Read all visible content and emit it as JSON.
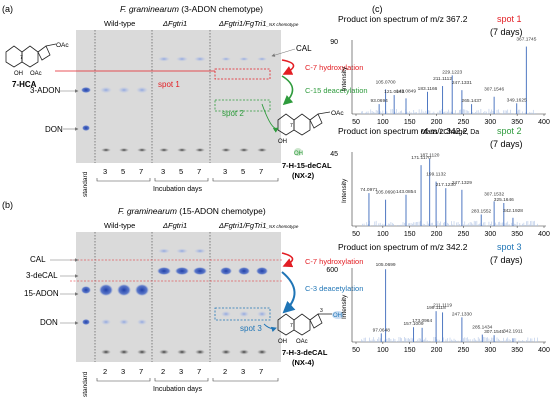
{
  "colors": {
    "red": "#e31e24",
    "green": "#2e9b3c",
    "blue": "#1f75b6",
    "spec": "#6f93c8",
    "plate": "#dadada",
    "plateDark": "#c9c9c9"
  },
  "panel_a": {
    "label": "(a)",
    "title_species": "F. graminearum",
    "title_rest": " (3-ADON chemotype)",
    "col_labels": [
      "Wild-type",
      "ΔFgtri1",
      "ΔFgtri1/FgTri1"
    ],
    "col_sub": "_NX chemotype",
    "standard_label": "standard",
    "days": [
      "3",
      "5",
      "7",
      "3",
      "5",
      "7",
      "3",
      "5",
      "7"
    ],
    "axis_label": "Incubation days",
    "bands": [
      "CAL",
      "3-ADON",
      "DON"
    ],
    "annotations": {
      "c7": "C-7 hydroxylation",
      "c15": "C-15 deacetylation",
      "spot1": "spot 1",
      "spot2": "spot 2"
    },
    "compound_left": "7-HCA",
    "compound_right_1": "7-H-15-deCAL",
    "compound_right_2": "(NX-2)",
    "struct": {
      "oac": "OAc",
      "oh": "OH",
      "seven": "7",
      "three": "3"
    }
  },
  "panel_b": {
    "label": "(b)",
    "title_species": "F. graminearum",
    "title_rest": " (15-ADON chemotype)",
    "col_labels": [
      "Wild-type",
      "ΔFgtri1",
      "ΔFgtri1/FgTri1"
    ],
    "col_sub": "_NX chemotype",
    "standard_label": "standard",
    "days": [
      "2",
      "3",
      "7",
      "2",
      "3",
      "7",
      "2",
      "3",
      "7"
    ],
    "axis_label": "Incubation days",
    "bands": [
      "CAL",
      "3-deCAL",
      "15-ADON",
      "DON"
    ],
    "annotations": {
      "c7": "C-7 hydroxylation",
      "c3": "C-3 deacetylation",
      "spot3": "spot 3"
    },
    "compound_right_1": "7-H-3-deCAL",
    "compound_right_2": "(NX-4)",
    "struct": {
      "oac": "OAc",
      "oh": "OH",
      "seven": "7",
      "three": "3"
    }
  },
  "panel_c": {
    "label": "(c)",
    "y_axis": "Intensity",
    "x_axis": "Mass / Charge, Da",
    "spectra": [
      {
        "title": "Product ion spectrum of m/z 367.2",
        "spot": "spot 1",
        "spot_color": "#e31e24",
        "days": "(7 days)",
        "ymax": "90",
        "ymax_val": 90,
        "xticks": [
          "50",
          "100",
          "150",
          "200",
          "250",
          "300",
          "350",
          "400"
        ],
        "peaks": [
          [
            93.0694,
            12
          ],
          [
            105.07,
            30
          ],
          [
            121.0648,
            23
          ],
          [
            143.0849,
            19
          ],
          [
            183.1166,
            27
          ],
          [
            211.1112,
            34
          ],
          [
            229.1223,
            47
          ],
          [
            247.1331,
            29
          ],
          [
            265.1437,
            12
          ],
          [
            307.1546,
            21
          ],
          [
            349.1625,
            13
          ],
          [
            367.1745,
            82
          ]
        ],
        "labeled": [
          [
            93.0694,
            "93.0694"
          ],
          [
            105.07,
            "105.0700"
          ],
          [
            121.0648,
            "121.0648"
          ],
          [
            143.0849,
            "143.0849"
          ],
          [
            183.1166,
            "183.1166"
          ],
          [
            211.1112,
            "211.1112"
          ],
          [
            229.1223,
            "229.1223"
          ],
          [
            247.1331,
            "247.1331"
          ],
          [
            265.1437,
            "265.1437"
          ],
          [
            307.1546,
            "307.1546"
          ],
          [
            349.1625,
            "349.1625"
          ],
          [
            367.1745,
            "367.1745"
          ]
        ]
      },
      {
        "title": "Product ion spectrum of m/z 342.2",
        "spot": "spot 2",
        "spot_color": "#2e9b3c",
        "days": "(7 days)",
        "ymax": "45",
        "ymax_val": 45,
        "xticks": [
          "50",
          "100",
          "150",
          "200",
          "250",
          "300",
          "350",
          "400"
        ],
        "peaks": [
          [
            74.0971,
            20
          ],
          [
            105.069,
            16
          ],
          [
            143.0854,
            19
          ],
          [
            171.117,
            37
          ],
          [
            187.112,
            41
          ],
          [
            199.1132,
            27
          ],
          [
            217.123,
            23
          ],
          [
            247.1329,
            22
          ],
          [
            283.1552,
            7
          ],
          [
            307.1532,
            15
          ],
          [
            325.1646,
            14
          ],
          [
            342.1928,
            5
          ]
        ],
        "labeled": [
          [
            74.0971,
            "74.0971"
          ],
          [
            105.069,
            "105.0690"
          ],
          [
            143.0854,
            "143.0854"
          ],
          [
            171.117,
            "171.1170"
          ],
          [
            187.112,
            "187.1120"
          ],
          [
            199.1132,
            "199.1132"
          ],
          [
            217.123,
            "217.1230"
          ],
          [
            247.1329,
            "247.1329"
          ],
          [
            283.1552,
            "283.1552"
          ],
          [
            307.1532,
            "307.1532"
          ],
          [
            325.1646,
            "325.1646"
          ],
          [
            342.1928,
            "342.1928"
          ]
        ]
      },
      {
        "title": "Product ion spectrum of m/z 342.2",
        "spot": "spot 3",
        "spot_color": "#1f75b6",
        "days": "(7 days)",
        "ymax": "600",
        "ymax_val": 600,
        "xticks": [
          "50",
          "100",
          "150",
          "200",
          "250",
          "300",
          "350",
          "400"
        ],
        "peaks": [
          [
            97.0648,
            70
          ],
          [
            105.0699,
            590
          ],
          [
            157.1009,
            120
          ],
          [
            173.0964,
            115
          ],
          [
            199.1118,
            250
          ],
          [
            211.1119,
            240
          ],
          [
            247.133,
            200
          ],
          [
            285.1434,
            60
          ],
          [
            307.1545,
            55
          ],
          [
            342.1911,
            30
          ]
        ],
        "labeled": [
          [
            97.0648,
            "97.0648"
          ],
          [
            105.0699,
            "105.0699"
          ],
          [
            157.1009,
            "157.1009"
          ],
          [
            173.0964,
            "173.0964"
          ],
          [
            199.1118,
            "199.1118"
          ],
          [
            211.1119,
            "211.1119"
          ],
          [
            247.133,
            "247.1330"
          ],
          [
            285.1434,
            "285.1434"
          ],
          [
            307.1545,
            "307.1545"
          ],
          [
            342.1911,
            "342.1911"
          ]
        ]
      }
    ]
  }
}
